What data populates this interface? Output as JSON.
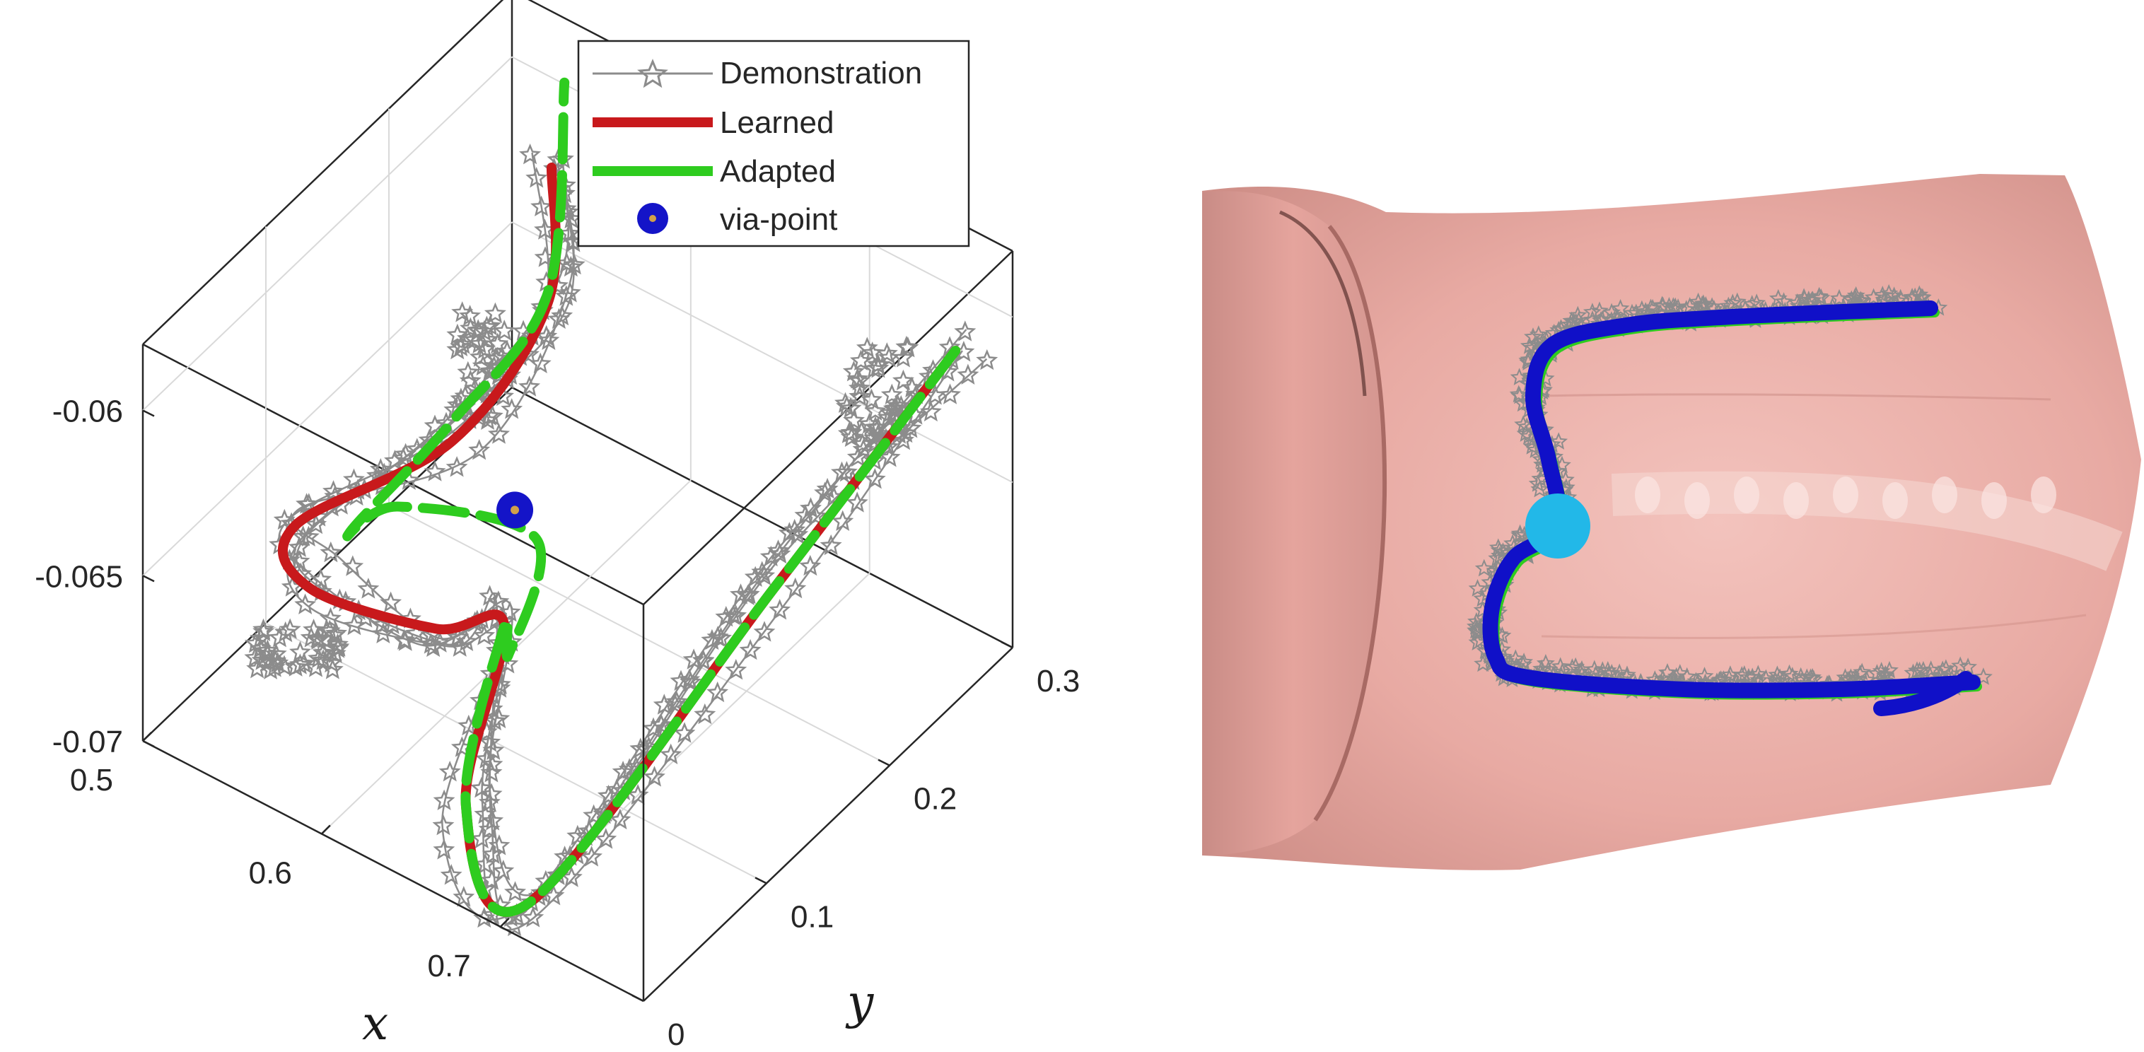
{
  "chart_data": [
    {
      "type": "line3d",
      "xlabel": "x",
      "ylabel": "y",
      "zlabel": "",
      "xlim": [
        0.5,
        0.78
      ],
      "ylim": [
        0,
        0.3
      ],
      "zlim": [
        -0.07,
        -0.058
      ],
      "x_ticks": [
        "0.5",
        "0.6",
        "0.7"
      ],
      "y_ticks": [
        "0",
        "0.1",
        "0.2",
        "0.3"
      ],
      "z_ticks": [
        "-0.07",
        "-0.065",
        "-0.06"
      ],
      "grid": true,
      "legend_position": "top-right",
      "legend": [
        "Demonstration",
        "Learned",
        "Adapted",
        "via-point"
      ],
      "series": [
        {
          "name": "Learned",
          "color": "#c8191c",
          "points": [
            [
              0.757,
              0.287,
              -0.0612
            ],
            [
              0.727,
              0.185,
              -0.0655
            ],
            [
              0.695,
              0.03,
              -0.0705
            ],
            [
              0.66,
              0.03,
              -0.0685
            ],
            [
              0.63,
              0.105,
              -0.0666
            ],
            [
              0.595,
              0.1,
              -0.0675
            ],
            [
              0.545,
              0.07,
              -0.0666
            ],
            [
              0.53,
              0.08,
              -0.0655
            ],
            [
              0.56,
              0.165,
              -0.0651
            ],
            [
              0.575,
              0.22,
              -0.0625
            ],
            [
              0.56,
              0.245,
              -0.0597
            ]
          ]
        },
        {
          "name": "Adapted",
          "color": "#2ecc1f",
          "points": [
            [
              0.757,
              0.287,
              -0.0612
            ],
            [
              0.727,
              0.185,
              -0.0655
            ],
            [
              0.695,
              0.03,
              -0.0705
            ],
            [
              0.66,
              0.03,
              -0.0685
            ],
            [
              0.63,
              0.105,
              -0.0666
            ],
            [
              0.615,
              0.13,
              -0.0688
            ],
            [
              0.61,
              0.16,
              -0.0665
            ],
            [
              0.56,
              0.12,
              -0.0655
            ],
            [
              0.55,
              0.095,
              -0.0657
            ],
            [
              0.56,
              0.165,
              -0.0645
            ],
            [
              0.575,
              0.22,
              -0.0622
            ],
            [
              0.55,
              0.27,
              -0.0583
            ]
          ]
        }
      ],
      "via_point": {
        "x": 0.6,
        "y": 0.157,
        "z": -0.0658,
        "color": "#1414c8"
      },
      "demonstration_color": "#8c8c8c"
    },
    {
      "type": "image_overlay",
      "description_color_surface": "#e6a8a2",
      "trajectory_color": "#1010c8",
      "via_point_color": "#22b8e8",
      "demonstration_color": "#8c8c8c",
      "adapted_color": "#2ecc1f"
    }
  ]
}
